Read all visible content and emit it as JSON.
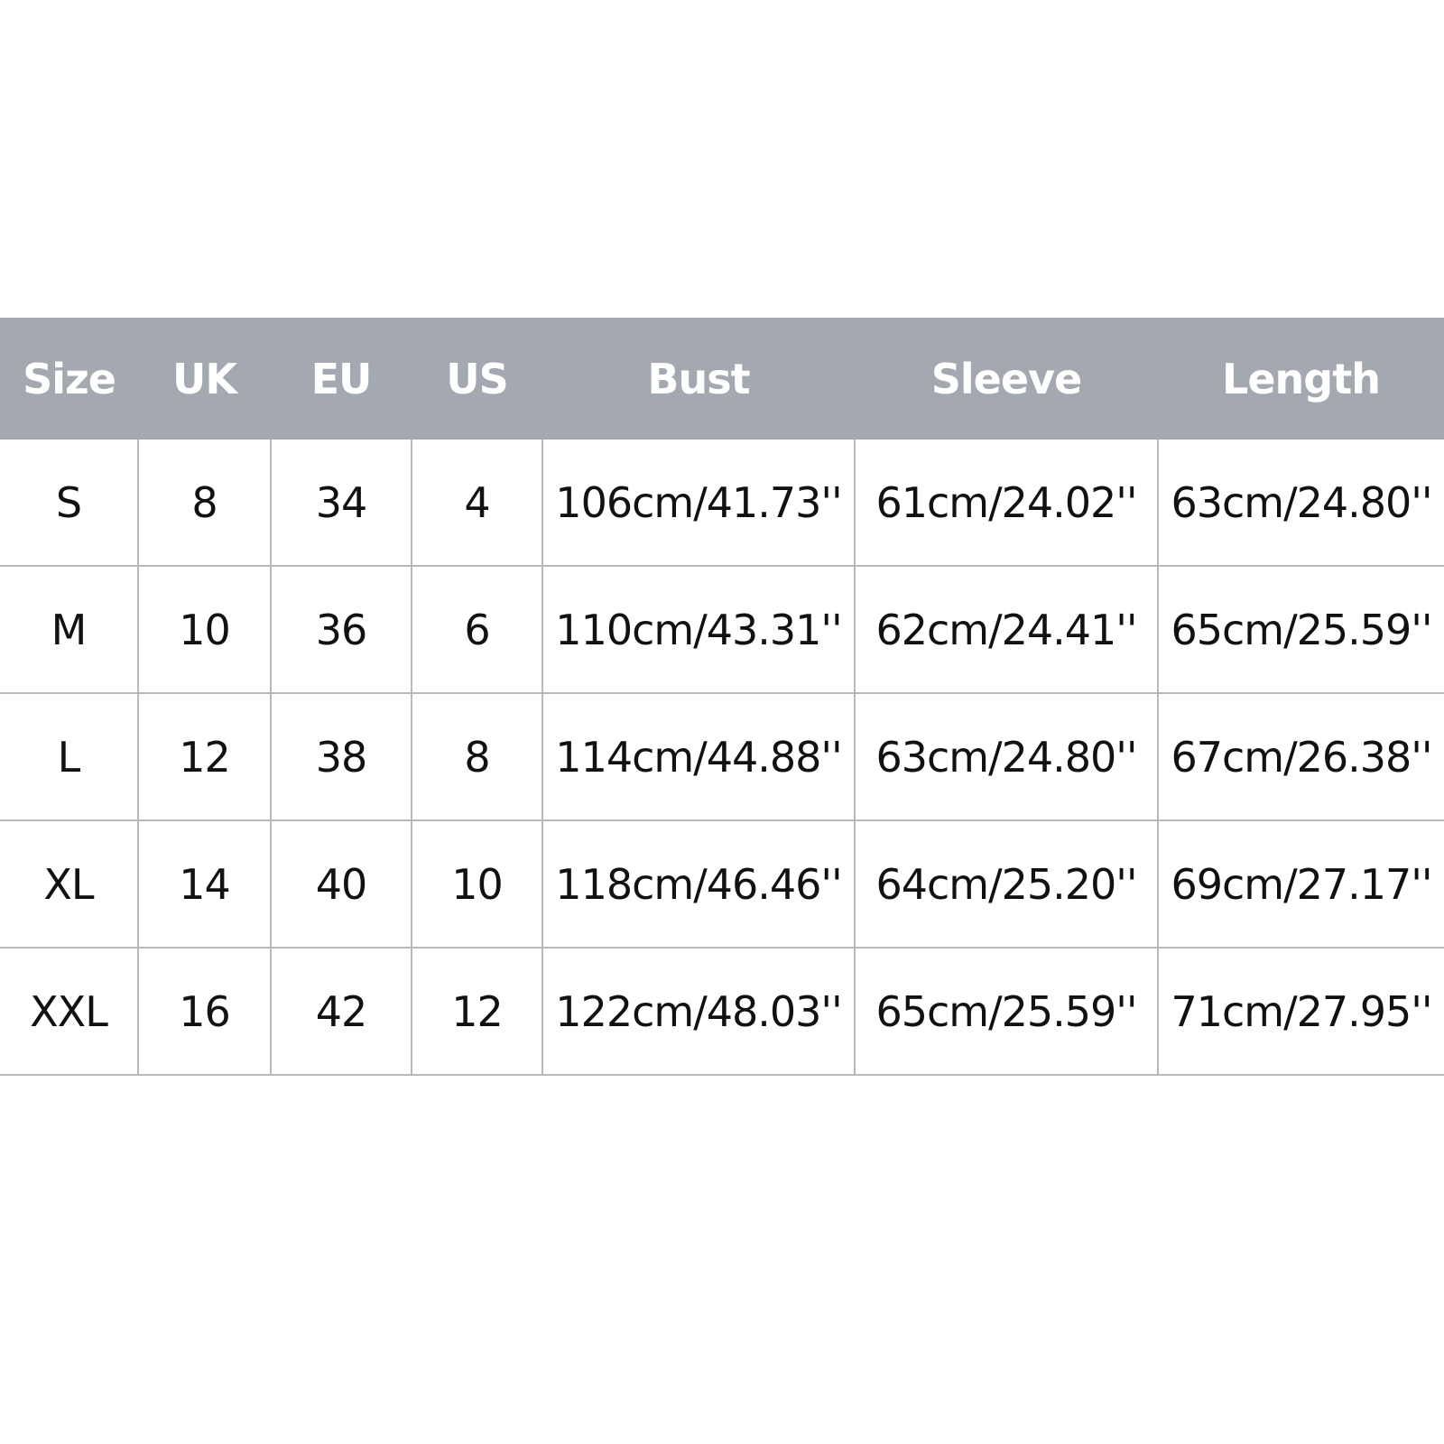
{
  "size_chart": {
    "header_color": "#a4a8b0",
    "columns": [
      "Size",
      "UK",
      "EU",
      "US",
      "Bust",
      "Sleeve",
      "Length"
    ],
    "rows": [
      [
        "S",
        "8",
        "34",
        "4",
        "106cm/41.73''",
        "61cm/24.02''",
        "63cm/24.80''"
      ],
      [
        "M",
        "10",
        "36",
        "6",
        "110cm/43.31''",
        "62cm/24.41''",
        "65cm/25.59''"
      ],
      [
        "L",
        "12",
        "38",
        "8",
        "114cm/44.88''",
        "63cm/24.80''",
        "67cm/26.38''"
      ],
      [
        "XL",
        "14",
        "40",
        "10",
        "118cm/46.46''",
        "64cm/25.20''",
        "69cm/27.17''"
      ],
      [
        "XXL",
        "16",
        "42",
        "12",
        "122cm/48.03''",
        "65cm/25.59''",
        "71cm/27.95''"
      ]
    ]
  }
}
